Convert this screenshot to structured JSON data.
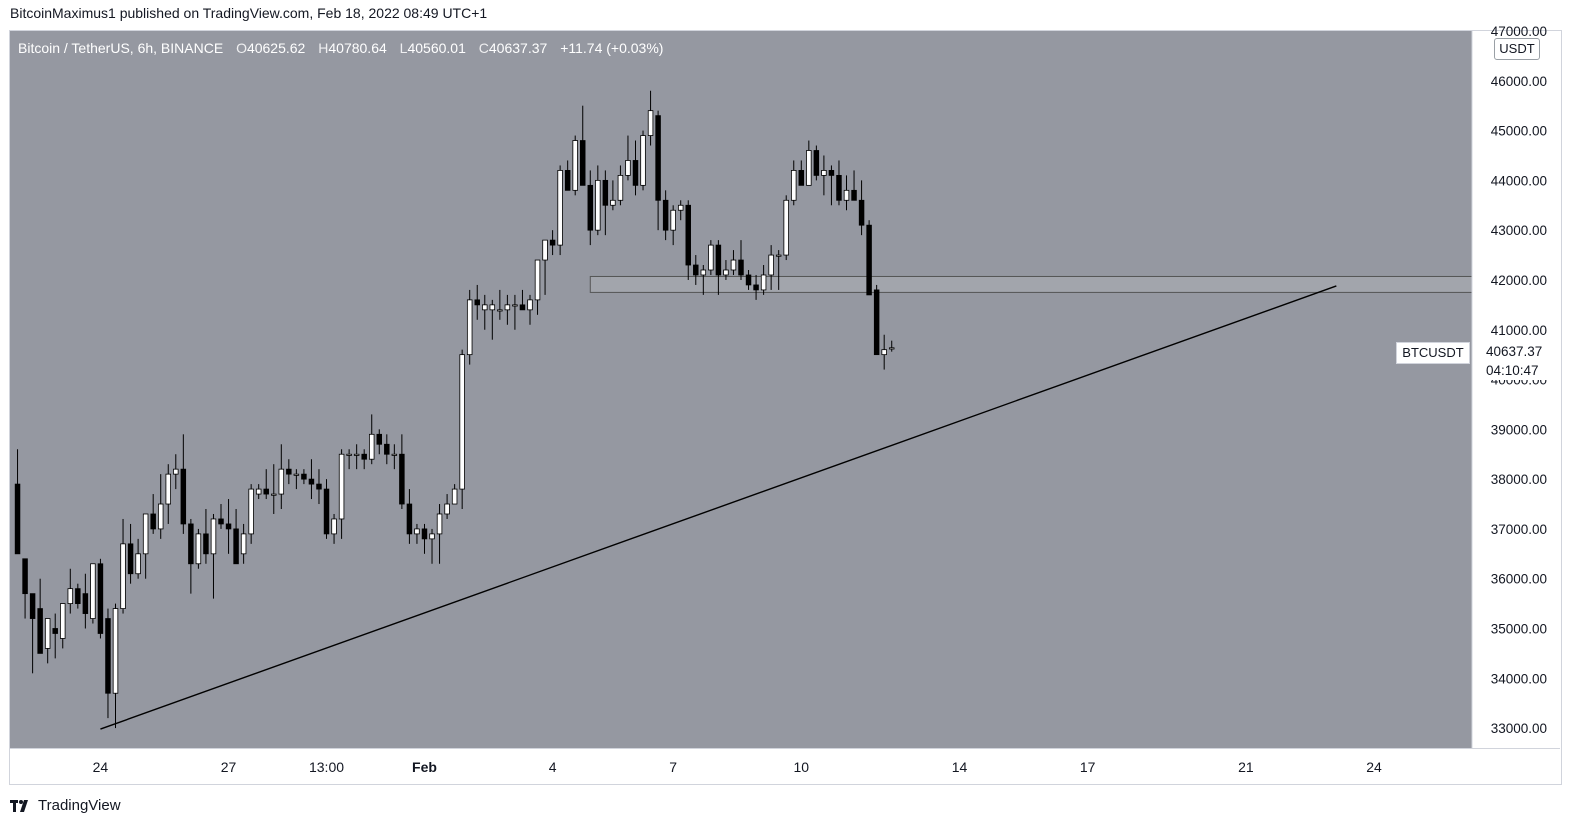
{
  "header": {
    "publish_line": "BitcoinMaximus1 published on TradingView.com, Feb 18, 2022 08:49 UTC+1"
  },
  "legend": {
    "symbol": "Bitcoin / TetherUS, 6h, BINANCE",
    "o_key": "O",
    "o": "40625.62",
    "h_key": "H",
    "h": "40780.64",
    "l_key": "L",
    "l": "40560.01",
    "c_key": "C",
    "c": "40637.37",
    "change": "+11.74 (+0.03%)"
  },
  "price_axis": {
    "unit": "USDT",
    "ticks": [
      "47000.00",
      "46000.00",
      "45000.00",
      "44000.00",
      "43000.00",
      "42000.00",
      "41000.00",
      "40000.00",
      "39000.00",
      "38000.00",
      "37000.00",
      "36000.00",
      "35000.00",
      "34000.00",
      "33000.00"
    ]
  },
  "time_axis": {
    "ticks": [
      "24",
      "27",
      "13:00",
      "Feb",
      "4",
      "7",
      "10",
      "14",
      "17",
      "21",
      "24"
    ]
  },
  "last_price": {
    "symbol": "BTCUSDT",
    "price": "40637.37",
    "countdown": "04:10:47"
  },
  "footer": {
    "brand": "TradingView"
  },
  "colors": {
    "plot_bg": "#9598a1",
    "up_body": "#ffffff",
    "down_body": "#000000",
    "wick": "#000000",
    "trendline": "#000000",
    "zone_fill": "#a3a6ad",
    "zone_stroke": "#555555"
  },
  "chart_data": {
    "type": "candlestick",
    "title": "Bitcoin / TetherUS, 6h, BINANCE",
    "ylim": [
      32600,
      47000
    ],
    "x_index_range": [
      -1,
      193
    ],
    "x_tick_index": [
      11,
      28,
      41,
      54,
      71,
      87,
      104,
      125,
      142,
      163,
      180
    ],
    "candles": [
      {
        "o": 37900,
        "h": 38600,
        "l": 36500,
        "c": 36500
      },
      {
        "o": 36400,
        "h": 36400,
        "l": 35200,
        "c": 35700
      },
      {
        "o": 35700,
        "h": 35700,
        "l": 34100,
        "c": 35200
      },
      {
        "o": 35400,
        "h": 36000,
        "l": 34500,
        "c": 34500
      },
      {
        "o": 34600,
        "h": 35200,
        "l": 34300,
        "c": 35200
      },
      {
        "o": 35000,
        "h": 35300,
        "l": 34400,
        "c": 34900
      },
      {
        "o": 34800,
        "h": 35500,
        "l": 34600,
        "c": 35500
      },
      {
        "o": 35500,
        "h": 36200,
        "l": 35300,
        "c": 35800
      },
      {
        "o": 35800,
        "h": 35900,
        "l": 35400,
        "c": 35500
      },
      {
        "o": 35700,
        "h": 36100,
        "l": 35000,
        "c": 35300
      },
      {
        "o": 35200,
        "h": 36300,
        "l": 35100,
        "c": 36300
      },
      {
        "o": 36300,
        "h": 36400,
        "l": 34800,
        "c": 34900
      },
      {
        "o": 35200,
        "h": 35400,
        "l": 33200,
        "c": 33700
      },
      {
        "o": 33700,
        "h": 35500,
        "l": 33000,
        "c": 35400
      },
      {
        "o": 35400,
        "h": 37200,
        "l": 35300,
        "c": 36700
      },
      {
        "o": 36700,
        "h": 37100,
        "l": 35900,
        "c": 36100
      },
      {
        "o": 36100,
        "h": 36800,
        "l": 36000,
        "c": 36500
      },
      {
        "o": 36500,
        "h": 37200,
        "l": 36000,
        "c": 37300
      },
      {
        "o": 37300,
        "h": 37700,
        "l": 36900,
        "c": 37000
      },
      {
        "o": 37000,
        "h": 38100,
        "l": 36800,
        "c": 37500
      },
      {
        "o": 37500,
        "h": 38300,
        "l": 37100,
        "c": 38100
      },
      {
        "o": 38100,
        "h": 38500,
        "l": 37800,
        "c": 38200
      },
      {
        "o": 38200,
        "h": 38900,
        "l": 36900,
        "c": 37100
      },
      {
        "o": 37100,
        "h": 37200,
        "l": 35700,
        "c": 36300
      },
      {
        "o": 36300,
        "h": 37000,
        "l": 36200,
        "c": 36900
      },
      {
        "o": 36900,
        "h": 37400,
        "l": 36300,
        "c": 36500
      },
      {
        "o": 36500,
        "h": 37300,
        "l": 35600,
        "c": 37200
      },
      {
        "o": 37200,
        "h": 37500,
        "l": 37000,
        "c": 37100
      },
      {
        "o": 37100,
        "h": 37600,
        "l": 36500,
        "c": 37000
      },
      {
        "o": 37000,
        "h": 37400,
        "l": 36400,
        "c": 36300
      },
      {
        "o": 36500,
        "h": 37100,
        "l": 36300,
        "c": 36900
      },
      {
        "o": 36900,
        "h": 37900,
        "l": 36700,
        "c": 37800
      },
      {
        "o": 37700,
        "h": 37900,
        "l": 37600,
        "c": 37800
      },
      {
        "o": 37800,
        "h": 38200,
        "l": 37600,
        "c": 37700
      },
      {
        "o": 37700,
        "h": 38300,
        "l": 37300,
        "c": 37700
      },
      {
        "o": 37700,
        "h": 38700,
        "l": 37400,
        "c": 38200
      },
      {
        "o": 38200,
        "h": 38400,
        "l": 37900,
        "c": 38100
      },
      {
        "o": 38100,
        "h": 38200,
        "l": 37800,
        "c": 38100
      },
      {
        "o": 38100,
        "h": 38200,
        "l": 37900,
        "c": 38000
      },
      {
        "o": 38000,
        "h": 38400,
        "l": 37600,
        "c": 37900
      },
      {
        "o": 37900,
        "h": 38200,
        "l": 37500,
        "c": 37800
      },
      {
        "o": 37800,
        "h": 38000,
        "l": 36800,
        "c": 36900
      },
      {
        "o": 36900,
        "h": 37300,
        "l": 36700,
        "c": 37200
      },
      {
        "o": 37200,
        "h": 38600,
        "l": 36800,
        "c": 38500
      },
      {
        "o": 38500,
        "h": 38600,
        "l": 38200,
        "c": 38500
      },
      {
        "o": 38500,
        "h": 38700,
        "l": 38200,
        "c": 38500
      },
      {
        "o": 38500,
        "h": 38600,
        "l": 38200,
        "c": 38400
      },
      {
        "o": 38400,
        "h": 39300,
        "l": 38300,
        "c": 38900
      },
      {
        "o": 38900,
        "h": 39000,
        "l": 38500,
        "c": 38700
      },
      {
        "o": 38700,
        "h": 38900,
        "l": 38300,
        "c": 38500
      },
      {
        "o": 38500,
        "h": 38700,
        "l": 38200,
        "c": 38500
      },
      {
        "o": 38500,
        "h": 38900,
        "l": 37400,
        "c": 37500
      },
      {
        "o": 37500,
        "h": 37800,
        "l": 36700,
        "c": 36900
      },
      {
        "o": 36900,
        "h": 37100,
        "l": 36700,
        "c": 37000
      },
      {
        "o": 37000,
        "h": 37100,
        "l": 36500,
        "c": 36800
      },
      {
        "o": 36800,
        "h": 37000,
        "l": 36300,
        "c": 36900
      },
      {
        "o": 36900,
        "h": 37500,
        "l": 36300,
        "c": 37300
      },
      {
        "o": 37300,
        "h": 37700,
        "l": 37200,
        "c": 37500
      },
      {
        "o": 37500,
        "h": 37900,
        "l": 37500,
        "c": 37800
      },
      {
        "o": 37800,
        "h": 40600,
        "l": 37400,
        "c": 40500
      },
      {
        "o": 40500,
        "h": 41800,
        "l": 40300,
        "c": 41600
      },
      {
        "o": 41600,
        "h": 41900,
        "l": 41200,
        "c": 41500
      },
      {
        "o": 41400,
        "h": 41700,
        "l": 41000,
        "c": 41500
      },
      {
        "o": 41400,
        "h": 41600,
        "l": 40800,
        "c": 41500
      },
      {
        "o": 41400,
        "h": 41800,
        "l": 41200,
        "c": 41400
      },
      {
        "o": 41400,
        "h": 41700,
        "l": 41100,
        "c": 41500
      },
      {
        "o": 41500,
        "h": 41700,
        "l": 41000,
        "c": 41500
      },
      {
        "o": 41500,
        "h": 41800,
        "l": 41400,
        "c": 41400
      },
      {
        "o": 41400,
        "h": 41700,
        "l": 41100,
        "c": 41600
      },
      {
        "o": 41600,
        "h": 42400,
        "l": 41300,
        "c": 42400
      },
      {
        "o": 42400,
        "h": 42800,
        "l": 41700,
        "c": 42800
      },
      {
        "o": 42800,
        "h": 43000,
        "l": 42500,
        "c": 42700
      },
      {
        "o": 42700,
        "h": 44300,
        "l": 42500,
        "c": 44200
      },
      {
        "o": 44200,
        "h": 44400,
        "l": 43800,
        "c": 43800
      },
      {
        "o": 43800,
        "h": 44900,
        "l": 43700,
        "c": 44800
      },
      {
        "o": 44800,
        "h": 45500,
        "l": 43900,
        "c": 43900
      },
      {
        "o": 43900,
        "h": 44200,
        "l": 42700,
        "c": 43000
      },
      {
        "o": 43000,
        "h": 44300,
        "l": 42900,
        "c": 44000
      },
      {
        "o": 44000,
        "h": 44200,
        "l": 42900,
        "c": 43500
      },
      {
        "o": 43500,
        "h": 44000,
        "l": 43400,
        "c": 43600
      },
      {
        "o": 43600,
        "h": 44300,
        "l": 43500,
        "c": 44100
      },
      {
        "o": 44100,
        "h": 44900,
        "l": 44000,
        "c": 44400
      },
      {
        "o": 44400,
        "h": 44800,
        "l": 43700,
        "c": 43900
      },
      {
        "o": 43900,
        "h": 45000,
        "l": 43800,
        "c": 44900
      },
      {
        "o": 44900,
        "h": 45800,
        "l": 44700,
        "c": 45400
      },
      {
        "o": 45300,
        "h": 45400,
        "l": 43000,
        "c": 43600
      },
      {
        "o": 43600,
        "h": 43800,
        "l": 42800,
        "c": 43000
      },
      {
        "o": 43000,
        "h": 43500,
        "l": 42700,
        "c": 43400
      },
      {
        "o": 43400,
        "h": 43600,
        "l": 43200,
        "c": 43500
      },
      {
        "o": 43500,
        "h": 43600,
        "l": 42000,
        "c": 42300
      },
      {
        "o": 42300,
        "h": 42500,
        "l": 41900,
        "c": 42100
      },
      {
        "o": 42100,
        "h": 42300,
        "l": 41700,
        "c": 42200
      },
      {
        "o": 42200,
        "h": 42800,
        "l": 42100,
        "c": 42700
      },
      {
        "o": 42700,
        "h": 42800,
        "l": 41700,
        "c": 42100
      },
      {
        "o": 42100,
        "h": 42400,
        "l": 42000,
        "c": 42200
      },
      {
        "o": 42200,
        "h": 42600,
        "l": 42100,
        "c": 42400
      },
      {
        "o": 42400,
        "h": 42800,
        "l": 42000,
        "c": 42100
      },
      {
        "o": 42100,
        "h": 42200,
        "l": 41800,
        "c": 41900
      },
      {
        "o": 41900,
        "h": 42100,
        "l": 41600,
        "c": 41800
      },
      {
        "o": 41800,
        "h": 42300,
        "l": 41700,
        "c": 42100
      },
      {
        "o": 42100,
        "h": 42700,
        "l": 41800,
        "c": 42500
      },
      {
        "o": 42500,
        "h": 42600,
        "l": 41800,
        "c": 42500
      },
      {
        "o": 42500,
        "h": 43700,
        "l": 42400,
        "c": 43600
      },
      {
        "o": 43600,
        "h": 44400,
        "l": 43500,
        "c": 44200
      },
      {
        "o": 44200,
        "h": 44400,
        "l": 43900,
        "c": 43900
      },
      {
        "o": 43900,
        "h": 44800,
        "l": 43900,
        "c": 44600
      },
      {
        "o": 44600,
        "h": 44700,
        "l": 44000,
        "c": 44100
      },
      {
        "o": 44100,
        "h": 44500,
        "l": 43700,
        "c": 44200
      },
      {
        "o": 44200,
        "h": 44300,
        "l": 43500,
        "c": 44100
      },
      {
        "o": 44100,
        "h": 44400,
        "l": 43500,
        "c": 43600
      },
      {
        "o": 43600,
        "h": 44100,
        "l": 43400,
        "c": 43800
      },
      {
        "o": 43800,
        "h": 44200,
        "l": 43600,
        "c": 43600
      },
      {
        "o": 43600,
        "h": 44000,
        "l": 42900,
        "c": 43100
      },
      {
        "o": 43100,
        "h": 43200,
        "l": 41700,
        "c": 41700
      },
      {
        "o": 41800,
        "h": 41900,
        "l": 40500,
        "c": 40500
      },
      {
        "o": 40500,
        "h": 40900,
        "l": 40200,
        "c": 40600
      },
      {
        "o": 40625.62,
        "h": 40780.64,
        "l": 40560.01,
        "c": 40637.37
      }
    ],
    "trendline": {
      "start": {
        "index": 11,
        "price": 32980
      },
      "end": {
        "index": 175,
        "price": 41880
      }
    },
    "support_zone": {
      "start_index": 76,
      "end_index": 193,
      "low": 41750,
      "high": 42070
    }
  }
}
